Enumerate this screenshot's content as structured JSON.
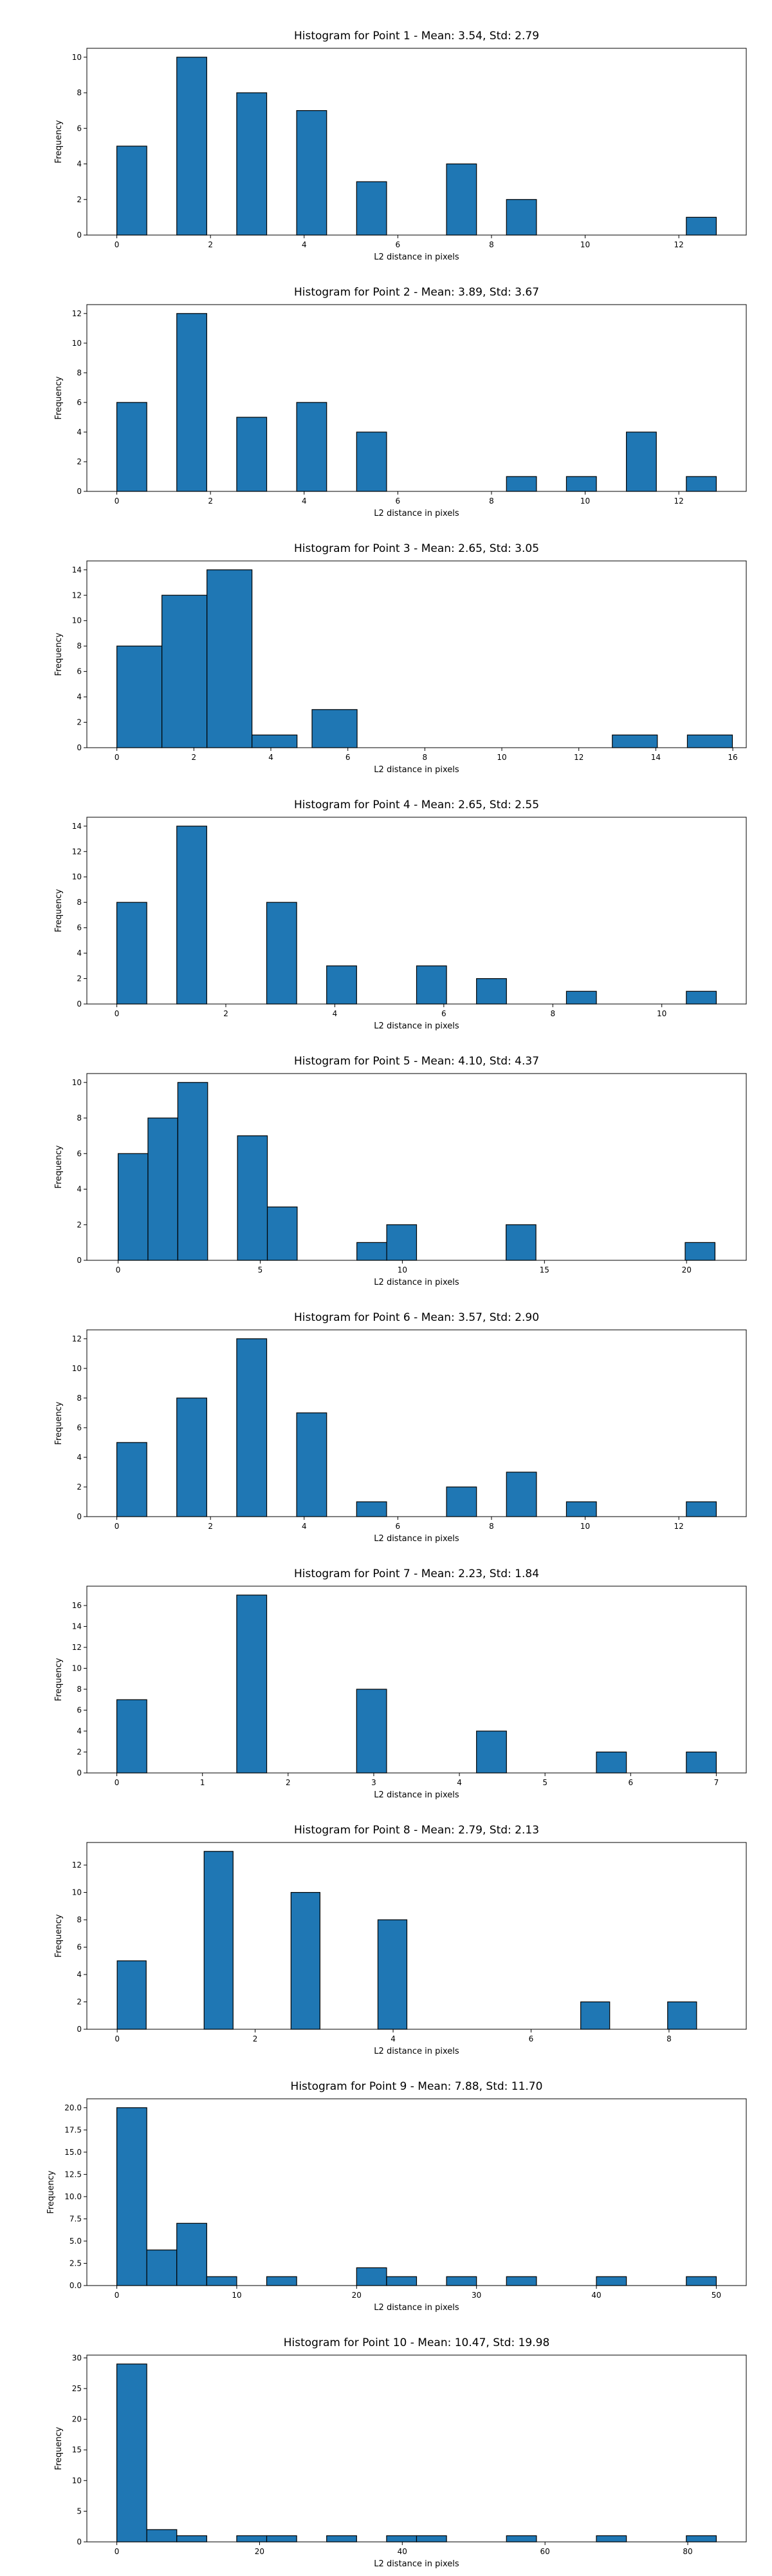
{
  "figure": {
    "bar_color": "#1f77b4",
    "edge_color": "#000000",
    "background": "#ffffff"
  },
  "chart_data": [
    {
      "type": "bar",
      "title": "Histogram for Point 1 - Mean: 3.54, Std: 2.79",
      "xlabel": "L2 distance in pixels",
      "ylabel": "Frequency",
      "xlim": [
        -0.64,
        13.44
      ],
      "ylim": [
        0,
        10.5
      ],
      "xticks": [
        0,
        2,
        4,
        6,
        8,
        10,
        12
      ],
      "yticks": [
        0,
        2,
        4,
        6,
        8,
        10
      ],
      "bin_width": 0.64,
      "bars": [
        {
          "x": 0.0,
          "value": 5
        },
        {
          "x": 1.28,
          "value": 10
        },
        {
          "x": 2.56,
          "value": 8
        },
        {
          "x": 3.84,
          "value": 7
        },
        {
          "x": 5.12,
          "value": 3
        },
        {
          "x": 7.04,
          "value": 4
        },
        {
          "x": 8.32,
          "value": 2
        },
        {
          "x": 12.16,
          "value": 1
        }
      ]
    },
    {
      "type": "bar",
      "title": "Histogram for Point 2 - Mean: 3.89, Std: 3.67",
      "xlabel": "L2 distance in pixels",
      "ylabel": "Frequency",
      "xlim": [
        -0.64,
        13.44
      ],
      "ylim": [
        0,
        12.6
      ],
      "xticks": [
        0,
        2,
        4,
        6,
        8,
        10,
        12
      ],
      "yticks": [
        0,
        2,
        4,
        6,
        8,
        10,
        12
      ],
      "bin_width": 0.64,
      "bars": [
        {
          "x": 0.0,
          "value": 6
        },
        {
          "x": 1.28,
          "value": 12
        },
        {
          "x": 2.56,
          "value": 5
        },
        {
          "x": 3.84,
          "value": 6
        },
        {
          "x": 5.12,
          "value": 4
        },
        {
          "x": 8.32,
          "value": 1
        },
        {
          "x": 9.6,
          "value": 1
        },
        {
          "x": 10.88,
          "value": 4
        },
        {
          "x": 12.16,
          "value": 1
        }
      ]
    },
    {
      "type": "bar",
      "title": "Histogram for Point 3 - Mean: 2.65, Std: 3.05",
      "xlabel": "L2 distance in pixels",
      "ylabel": "Frequency",
      "xlim": [
        -0.78,
        16.35
      ],
      "ylim": [
        0,
        14.7
      ],
      "xticks": [
        0,
        2,
        4,
        6,
        8,
        10,
        12,
        14,
        16
      ],
      "yticks": [
        0,
        2,
        4,
        6,
        8,
        10,
        12,
        14
      ],
      "bin_width": 1.17,
      "bars": [
        {
          "x": 0.0,
          "value": 8
        },
        {
          "x": 1.17,
          "value": 12
        },
        {
          "x": 2.34,
          "value": 14
        },
        {
          "x": 3.51,
          "value": 1
        },
        {
          "x": 5.07,
          "value": 3
        },
        {
          "x": 12.87,
          "value": 1
        },
        {
          "x": 14.82,
          "value": 1
        }
      ]
    },
    {
      "type": "bar",
      "title": "Histogram for Point 4 - Mean: 2.65, Std: 2.55",
      "xlabel": "L2 distance in pixels",
      "ylabel": "Frequency",
      "xlim": [
        -0.55,
        11.55
      ],
      "ylim": [
        0,
        14.7
      ],
      "xticks": [
        0,
        2,
        4,
        6,
        8,
        10
      ],
      "yticks": [
        0,
        2,
        4,
        6,
        8,
        10,
        12,
        14
      ],
      "bin_width": 0.55,
      "bars": [
        {
          "x": 0.0,
          "value": 8
        },
        {
          "x": 1.1,
          "value": 14
        },
        {
          "x": 2.75,
          "value": 8
        },
        {
          "x": 3.85,
          "value": 3
        },
        {
          "x": 5.5,
          "value": 3
        },
        {
          "x": 6.6,
          "value": 2
        },
        {
          "x": 8.25,
          "value": 1
        },
        {
          "x": 10.45,
          "value": 1
        }
      ]
    },
    {
      "type": "bar",
      "title": "Histogram for Point 5 - Mean: 4.10, Std: 4.37",
      "xlabel": "L2 distance in pixels",
      "ylabel": "Frequency",
      "xlim": [
        -1.1,
        22.1
      ],
      "ylim": [
        0,
        10.5
      ],
      "xticks": [
        0,
        5,
        10,
        15,
        20
      ],
      "yticks": [
        0,
        2,
        4,
        6,
        8,
        10
      ],
      "bin_width": 1.05,
      "bars": [
        {
          "x": 0.0,
          "value": 6
        },
        {
          "x": 1.05,
          "value": 8
        },
        {
          "x": 2.1,
          "value": 10
        },
        {
          "x": 4.2,
          "value": 7
        },
        {
          "x": 5.25,
          "value": 3
        },
        {
          "x": 8.4,
          "value": 1
        },
        {
          "x": 9.45,
          "value": 2
        },
        {
          "x": 13.65,
          "value": 2
        },
        {
          "x": 19.95,
          "value": 1
        }
      ]
    },
    {
      "type": "bar",
      "title": "Histogram for Point 6 - Mean: 3.57, Std: 2.90",
      "xlabel": "L2 distance in pixels",
      "ylabel": "Frequency",
      "xlim": [
        -0.64,
        13.44
      ],
      "ylim": [
        0,
        12.6
      ],
      "xticks": [
        0,
        2,
        4,
        6,
        8,
        10,
        12
      ],
      "yticks": [
        0,
        2,
        4,
        6,
        8,
        10,
        12
      ],
      "bin_width": 0.64,
      "bars": [
        {
          "x": 0.0,
          "value": 5
        },
        {
          "x": 1.28,
          "value": 8
        },
        {
          "x": 2.56,
          "value": 12
        },
        {
          "x": 3.84,
          "value": 7
        },
        {
          "x": 5.12,
          "value": 1
        },
        {
          "x": 7.04,
          "value": 2
        },
        {
          "x": 8.32,
          "value": 3
        },
        {
          "x": 9.6,
          "value": 1
        },
        {
          "x": 12.16,
          "value": 1
        }
      ]
    },
    {
      "type": "bar",
      "title": "Histogram for Point 7 - Mean: 2.23, Std: 1.84",
      "xlabel": "L2 distance in pixels",
      "ylabel": "Frequency",
      "xlim": [
        -0.35,
        7.35
      ],
      "ylim": [
        0,
        17.85
      ],
      "xticks": [
        0,
        1,
        2,
        3,
        4,
        5,
        6,
        7
      ],
      "yticks": [
        0,
        2,
        4,
        6,
        8,
        10,
        12,
        14,
        16
      ],
      "bin_width": 0.35,
      "bars": [
        {
          "x": 0.0,
          "value": 7
        },
        {
          "x": 1.4,
          "value": 17
        },
        {
          "x": 2.8,
          "value": 8
        },
        {
          "x": 4.2,
          "value": 4
        },
        {
          "x": 5.6,
          "value": 2
        },
        {
          "x": 6.65,
          "value": 2
        }
      ]
    },
    {
      "type": "bar",
      "title": "Histogram for Point 8 - Mean: 2.79, Std: 2.13",
      "xlabel": "L2 distance in pixels",
      "ylabel": "Frequency",
      "xlim": [
        -0.44,
        9.12
      ],
      "ylim": [
        0,
        13.65
      ],
      "xticks": [
        0,
        2,
        4,
        6,
        8
      ],
      "yticks": [
        0,
        2,
        4,
        6,
        8,
        10,
        12
      ],
      "bin_width": 0.42,
      "bars": [
        {
          "x": 0.0,
          "value": 5
        },
        {
          "x": 1.26,
          "value": 13
        },
        {
          "x": 2.52,
          "value": 10
        },
        {
          "x": 3.78,
          "value": 8
        },
        {
          "x": 6.72,
          "value": 2
        },
        {
          "x": 7.98,
          "value": 2
        }
      ]
    },
    {
      "type": "bar",
      "title": "Histogram for Point 9 - Mean: 7.88, Std: 11.70",
      "xlabel": "L2 distance in pixels",
      "ylabel": "Frequency",
      "xlim": [
        -2.5,
        52.5
      ],
      "ylim": [
        0,
        21.0
      ],
      "xticks": [
        0,
        10,
        20,
        30,
        40,
        50
      ],
      "yticks": [
        0.0,
        2.5,
        5.0,
        7.5,
        10.0,
        12.5,
        15.0,
        17.5,
        20.0
      ],
      "ytick_format": "fixed1",
      "bin_width": 2.5,
      "bars": [
        {
          "x": 0.0,
          "value": 20
        },
        {
          "x": 2.5,
          "value": 4
        },
        {
          "x": 5.0,
          "value": 7
        },
        {
          "x": 7.5,
          "value": 1
        },
        {
          "x": 12.5,
          "value": 1
        },
        {
          "x": 20.0,
          "value": 2
        },
        {
          "x": 22.5,
          "value": 1
        },
        {
          "x": 27.5,
          "value": 1
        },
        {
          "x": 32.5,
          "value": 1
        },
        {
          "x": 40.0,
          "value": 1
        },
        {
          "x": 47.5,
          "value": 1
        }
      ]
    },
    {
      "type": "bar",
      "title": "Histogram for Point 10 - Mean: 10.47, Std: 19.98",
      "xlabel": "L2 distance in pixels",
      "ylabel": "Frequency",
      "xlim": [
        -4.2,
        88.2
      ],
      "ylim": [
        0,
        30.45
      ],
      "xticks": [
        0,
        20,
        40,
        60,
        80
      ],
      "yticks": [
        0,
        5,
        10,
        15,
        20,
        25,
        30
      ],
      "bin_width": 4.2,
      "bars": [
        {
          "x": 0.0,
          "value": 29
        },
        {
          "x": 4.2,
          "value": 2
        },
        {
          "x": 8.4,
          "value": 1
        },
        {
          "x": 16.8,
          "value": 1
        },
        {
          "x": 21.0,
          "value": 1
        },
        {
          "x": 29.4,
          "value": 1
        },
        {
          "x": 37.8,
          "value": 1
        },
        {
          "x": 42.0,
          "value": 1
        },
        {
          "x": 54.6,
          "value": 1
        },
        {
          "x": 67.2,
          "value": 1
        },
        {
          "x": 79.8,
          "value": 1
        }
      ]
    }
  ]
}
